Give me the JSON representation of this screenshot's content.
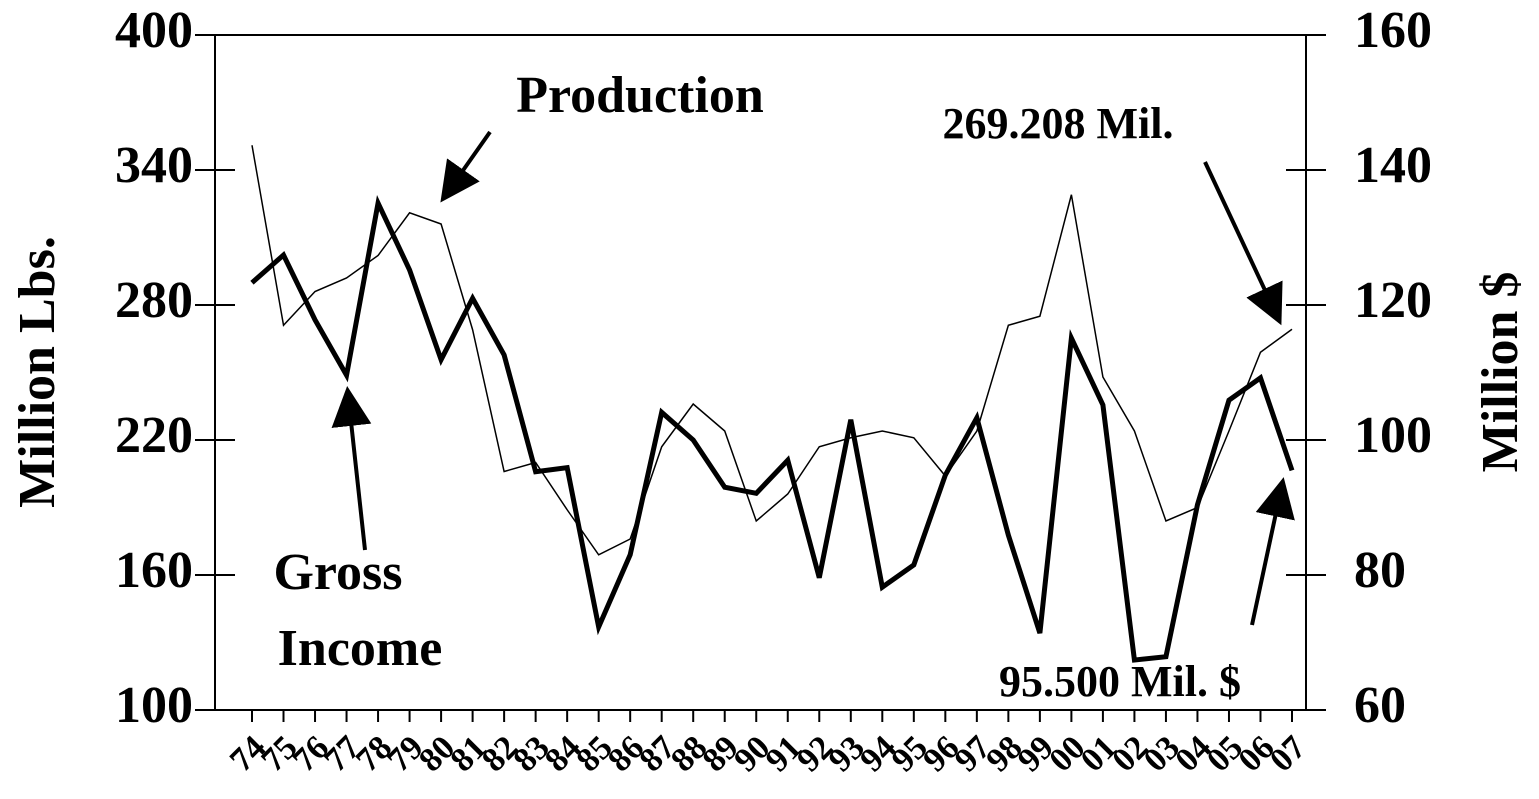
{
  "chart_data": {
    "type": "line",
    "categories": [
      "74",
      "75",
      "76",
      "77",
      "78",
      "79",
      "80",
      "81",
      "82",
      "83",
      "84",
      "85",
      "86",
      "87",
      "88",
      "89",
      "90",
      "91",
      "92",
      "93",
      "94",
      "95",
      "96",
      "97",
      "98",
      "99",
      "00",
      "01",
      "02",
      "03",
      "04",
      "05",
      "06",
      "07"
    ],
    "series": [
      {
        "color": "#000000",
        "line_width": 1.5,
        "axis": "y",
        "values": [
          351,
          271,
          286,
          292,
          302,
          321,
          316,
          269,
          206,
          210,
          189,
          169,
          176,
          217,
          236,
          224,
          184,
          196,
          217,
          221,
          224,
          221,
          204,
          224,
          271,
          275,
          329,
          248,
          224,
          184,
          190,
          224,
          259,
          269.208
        ]
      },
      {
        "color": "#000000",
        "line_width": 5,
        "axis": "y2",
        "values": [
          123.3,
          127.4,
          117.8,
          109.6,
          135.1,
          125.2,
          111.9,
          121.0,
          112.6,
          95.3,
          95.9,
          72.3,
          83.0,
          104.1,
          100.0,
          93.0,
          92.1,
          97.0,
          79.6,
          103.0,
          78.2,
          81.5,
          94.8,
          103.3,
          85.9,
          71.4,
          115.1,
          105.2,
          67.4,
          67.9,
          90.4,
          105.9,
          109.2,
          95.5
        ]
      }
    ],
    "ylabel": "Million Lbs.",
    "y2label": "Million $",
    "ylim": [
      100,
      400
    ],
    "yticks": [
      100,
      160,
      220,
      280,
      340,
      400
    ],
    "y2lim": [
      60,
      160
    ],
    "y2ticks": [
      60,
      80,
      100,
      120,
      140,
      160
    ],
    "annotations": [
      "Production",
      "269.208 Mil.",
      "Gross",
      "Income",
      "95.500 Mil. $"
    ]
  }
}
